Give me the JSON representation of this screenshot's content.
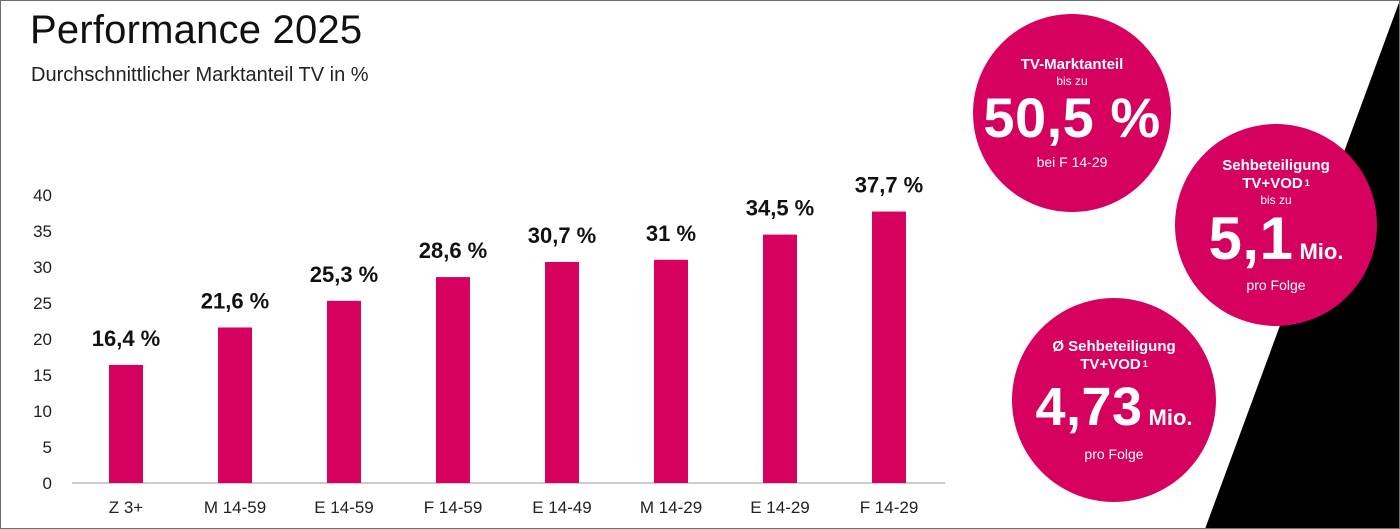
{
  "header": {
    "title": "Performance 2025",
    "subtitle": "Durchschnittlicher Marktanteil TV in %"
  },
  "colors": {
    "accent": "#d6005f",
    "dark": "#000000",
    "axis": "#999999"
  },
  "chart_data": {
    "type": "bar",
    "title": "Performance 2025",
    "subtitle": "Durchschnittlicher Marktanteil TV in %",
    "categories": [
      "Z 3+",
      "M 14-59",
      "E 14-59",
      "F 14-59",
      "E 14-49",
      "M 14-29",
      "E 14-29",
      "F 14-29"
    ],
    "values": [
      16.4,
      21.6,
      25.3,
      28.6,
      30.7,
      31,
      34.5,
      37.7
    ],
    "data_labels": [
      "16,4 %",
      "21,6 %",
      "25,3 %",
      "28,6 %",
      "30,7 %",
      "31 %",
      "34,5 %",
      "37,7 %"
    ],
    "ylim": [
      0,
      40
    ],
    "yticks": [
      0,
      5,
      10,
      15,
      20,
      25,
      30,
      35,
      40
    ],
    "grid": false,
    "legend": "none"
  },
  "kpis": {
    "market_share": {
      "heading": "TV-Marktanteil",
      "prefix": "bis zu",
      "value": "50,5 %",
      "footer": "bei F 14-29"
    },
    "reach_max": {
      "heading_line1": "Sehbeteiligung",
      "heading_line2": "TV+VOD",
      "footnote": "1",
      "prefix": "bis zu",
      "value": "5,1",
      "unit": "Mio.",
      "footer": "pro Folge"
    },
    "reach_avg": {
      "heading_line1": "Ø Sehbeteiligung",
      "heading_line2": "TV+VOD",
      "footnote": "1",
      "value": "4,73",
      "unit": "Mio.",
      "footer": "pro Folge"
    }
  }
}
